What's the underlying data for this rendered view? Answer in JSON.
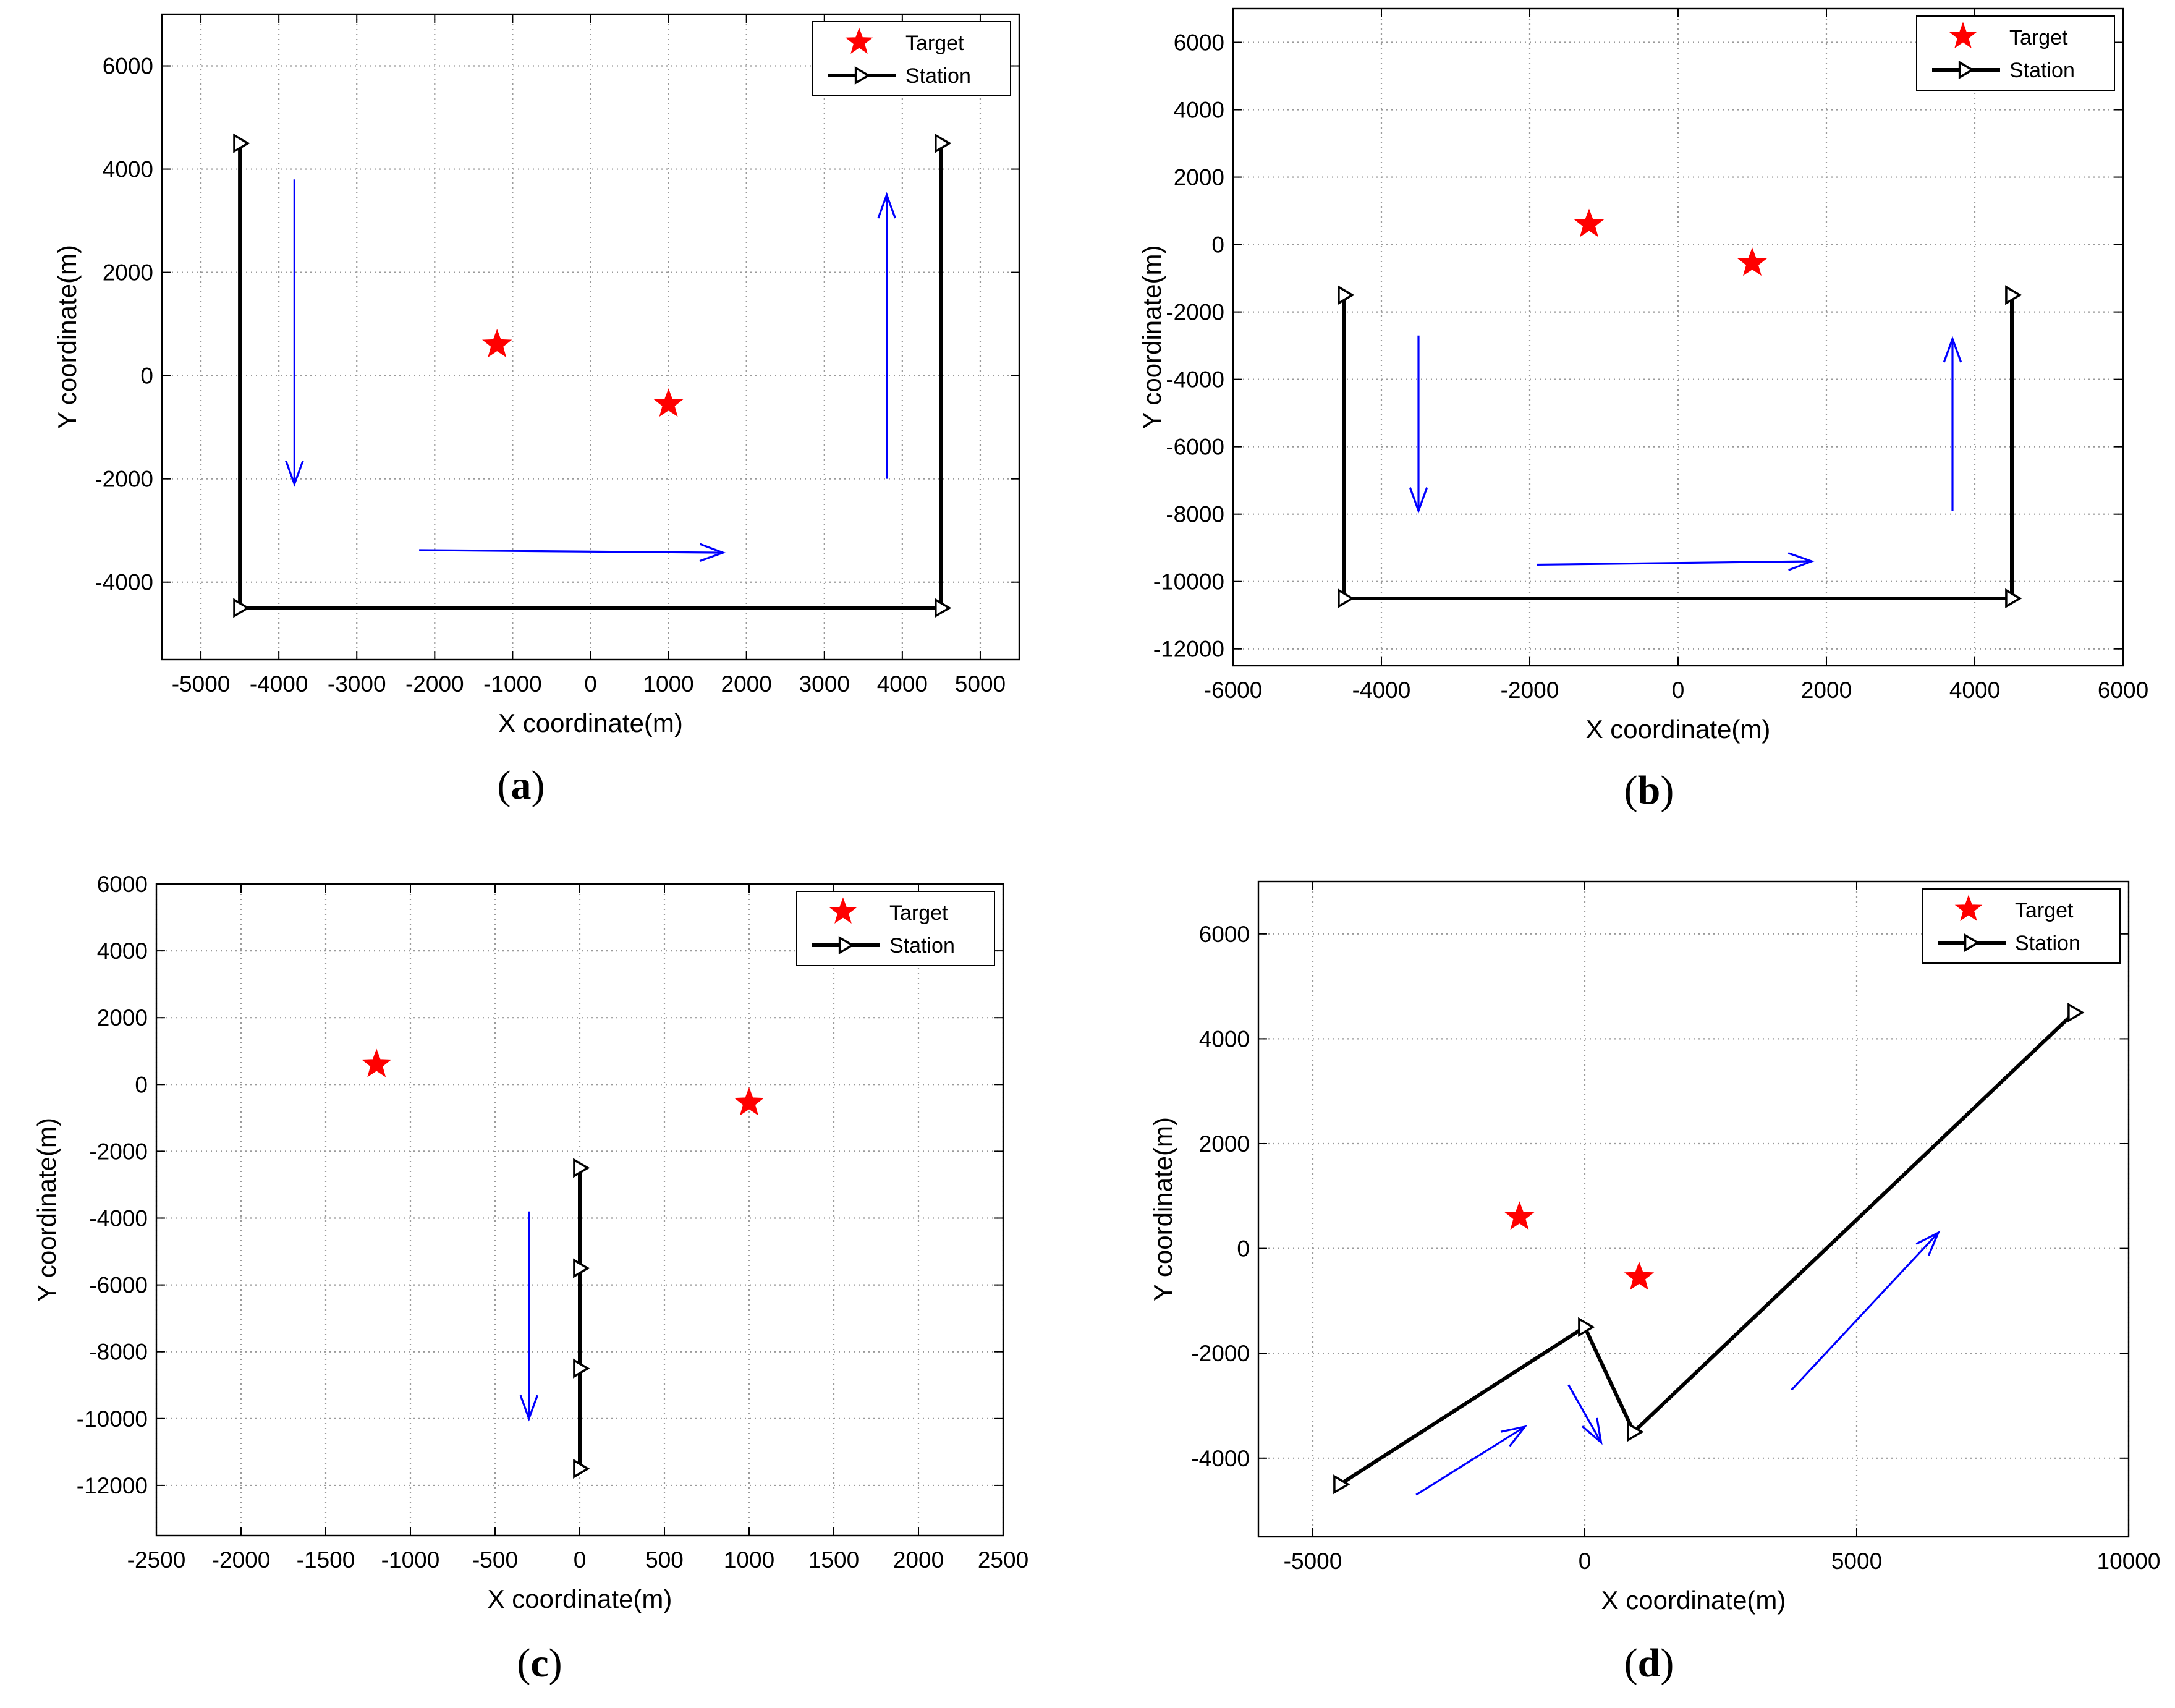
{
  "figure": {
    "legend": {
      "target_label": "Target",
      "station_label": "Station"
    },
    "colors": {
      "target": "#ff0000",
      "station": "#000000",
      "arrow": "#0000ff",
      "grid": "#9a9a9a"
    }
  },
  "chart_data": [
    {
      "id": "a",
      "type": "scatter",
      "panel_label": "a",
      "xlabel": "X coordinate(m)",
      "ylabel": "Y coordinate(m)",
      "xlim": [
        -5500,
        5500
      ],
      "ylim": [
        -5500,
        7000
      ],
      "xticks": [
        -5000,
        -4000,
        -3000,
        -2000,
        -1000,
        0,
        1000,
        2000,
        3000,
        4000,
        5000
      ],
      "yticks": [
        -4000,
        -2000,
        0,
        2000,
        4000,
        6000
      ],
      "grid": true,
      "legend_position": "top-right",
      "targets": [
        {
          "x": -1200,
          "y": 600
        },
        {
          "x": 1000,
          "y": -550
        }
      ],
      "station_path": [
        [
          -4500,
          4500
        ],
        [
          -4500,
          -4500
        ],
        [
          4500,
          -4500
        ],
        [
          4500,
          4500
        ]
      ],
      "station_markers": [
        [
          -4500,
          4500
        ],
        [
          -4500,
          -4500
        ],
        [
          4500,
          -4500
        ],
        [
          4500,
          4500
        ]
      ],
      "arrows": [
        [
          [
            -3800,
            3800
          ],
          [
            -3800,
            -2100
          ]
        ],
        [
          [
            -2200,
            -3380
          ],
          [
            1700,
            -3430
          ]
        ],
        [
          [
            3800,
            -2000
          ],
          [
            3800,
            3500
          ]
        ]
      ]
    },
    {
      "id": "b",
      "type": "scatter",
      "panel_label": "b",
      "xlabel": "X coordinate(m)",
      "ylabel": "Y coordinate(m)",
      "xlim": [
        -6000,
        6000
      ],
      "ylim": [
        -12500,
        7000
      ],
      "xticks": [
        -6000,
        -4000,
        -2000,
        0,
        2000,
        4000,
        6000
      ],
      "yticks": [
        -12000,
        -10000,
        -8000,
        -6000,
        -4000,
        -2000,
        0,
        2000,
        4000,
        6000
      ],
      "grid": true,
      "legend_position": "top-right",
      "targets": [
        {
          "x": -1200,
          "y": 600
        },
        {
          "x": 1000,
          "y": -550
        }
      ],
      "station_path": [
        [
          -4500,
          -1500
        ],
        [
          -4500,
          -10500
        ],
        [
          4500,
          -10500
        ],
        [
          4500,
          -1500
        ]
      ],
      "station_markers": [
        [
          -4500,
          -1500
        ],
        [
          -4500,
          -10500
        ],
        [
          4500,
          -10500
        ],
        [
          4500,
          -1500
        ]
      ],
      "arrows": [
        [
          [
            -3500,
            -2700
          ],
          [
            -3500,
            -7900
          ]
        ],
        [
          [
            -1900,
            -9500
          ],
          [
            1800,
            -9400
          ]
        ],
        [
          [
            3700,
            -7900
          ],
          [
            3700,
            -2800
          ]
        ]
      ]
    },
    {
      "id": "c",
      "type": "scatter",
      "panel_label": "c",
      "xlabel": "X coordinate(m)",
      "ylabel": "Y coordinate(m)",
      "xlim": [
        -2500,
        2500
      ],
      "ylim": [
        -13500,
        6000
      ],
      "xticks": [
        -2500,
        -2000,
        -1500,
        -1000,
        -500,
        0,
        500,
        1000,
        1500,
        2000,
        2500
      ],
      "yticks": [
        -12000,
        -10000,
        -8000,
        -6000,
        -4000,
        -2000,
        0,
        2000,
        4000,
        6000
      ],
      "grid": true,
      "legend_position": "top-right",
      "targets": [
        {
          "x": -1200,
          "y": 600
        },
        {
          "x": 1000,
          "y": -550
        }
      ],
      "station_path": [
        [
          0,
          -2500
        ],
        [
          0,
          -11500
        ]
      ],
      "station_markers": [
        [
          0,
          -2500
        ],
        [
          0,
          -5500
        ],
        [
          0,
          -8500
        ],
        [
          0,
          -11500
        ]
      ],
      "arrows": [
        [
          [
            -300,
            -3800
          ],
          [
            -300,
            -10000
          ]
        ]
      ]
    },
    {
      "id": "d",
      "type": "scatter",
      "panel_label": "d",
      "xlabel": "X coordinate(m)",
      "ylabel": "Y coordinate(m)",
      "xlim": [
        -6000,
        10000
      ],
      "ylim": [
        -5500,
        7000
      ],
      "xticks": [
        -5000,
        0,
        5000,
        10000
      ],
      "yticks": [
        -4000,
        -2000,
        0,
        2000,
        4000,
        6000
      ],
      "grid": true,
      "legend_position": "top-right",
      "targets": [
        {
          "x": -1200,
          "y": 600
        },
        {
          "x": 1000,
          "y": -550
        }
      ],
      "station_path": [
        [
          -4500,
          -4500
        ],
        [
          0,
          -1500
        ],
        [
          900,
          -3500
        ],
        [
          9000,
          4500
        ]
      ],
      "station_markers": [
        [
          -4500,
          -4500
        ],
        [
          0,
          -1500
        ],
        [
          900,
          -3500
        ],
        [
          9000,
          4500
        ]
      ],
      "arrows": [
        [
          [
            -3100,
            -4700
          ],
          [
            -1100,
            -3400
          ]
        ],
        [
          [
            -300,
            -2600
          ],
          [
            300,
            -3700
          ]
        ],
        [
          [
            3800,
            -2700
          ],
          [
            6500,
            300
          ]
        ]
      ]
    }
  ]
}
